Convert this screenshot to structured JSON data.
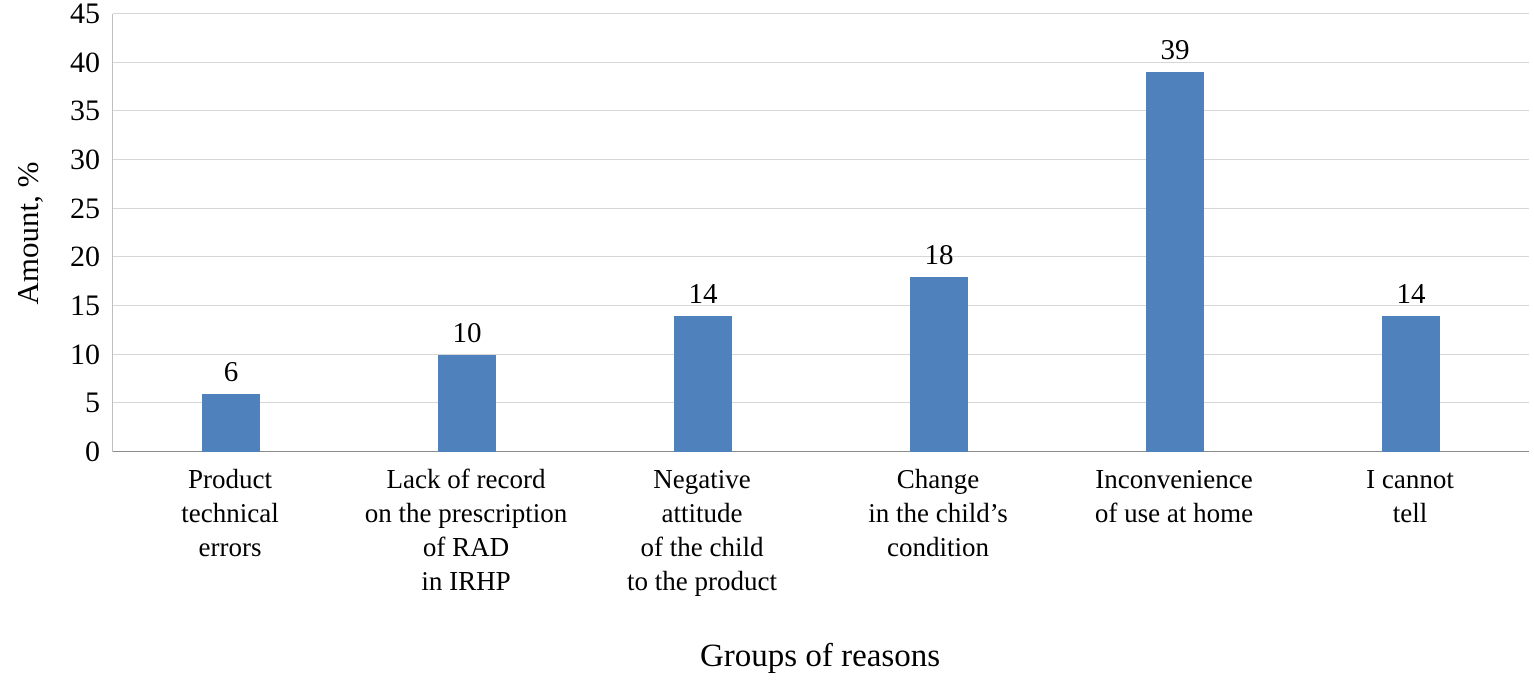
{
  "chart_data": {
    "type": "bar",
    "title": "",
    "xlabel": "Groups of reasons",
    "ylabel": "Amount, %",
    "ylim": [
      0,
      45
    ],
    "ytick_step": 5,
    "grid": "horizontal",
    "legend": "none",
    "bar_color": "#4f81bd",
    "gridline_color": "#d6d6d6",
    "categories": [
      [
        "Product",
        "technical",
        "errors"
      ],
      [
        "Lack of record",
        "on the prescription",
        "of RAD",
        "in IRHP"
      ],
      [
        "Negative",
        "attitude",
        "of the child",
        "to the product"
      ],
      [
        "Change",
        "in the child’s",
        "condition"
      ],
      [
        "Inconvenience",
        "of use at home"
      ],
      [
        "I cannot",
        "tell"
      ]
    ],
    "values": [
      6,
      10,
      14,
      18,
      39,
      14
    ],
    "data_labels": [
      "6",
      "10",
      "14",
      "18",
      "39",
      "14"
    ],
    "y_tick_labels": [
      "0",
      "5",
      "10",
      "15",
      "20",
      "25",
      "30",
      "35",
      "40",
      "45"
    ]
  }
}
